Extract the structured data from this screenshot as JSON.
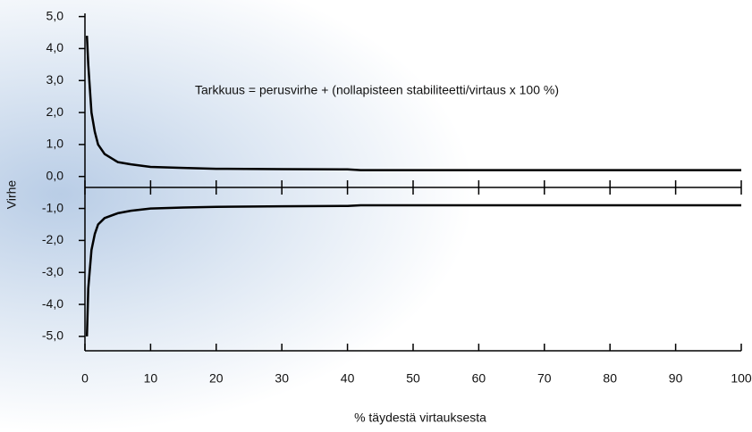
{
  "chart_data": {
    "type": "line",
    "annotation": "Tarkkuus = perusvirhe + (nollapisteen stabiliteetti/virtaus x 100 %)",
    "x_label": "% täydestä virtauksesta",
    "y_label": "Virhe",
    "x": [
      0.3,
      0.5,
      1,
      1.5,
      2,
      3,
      5,
      7,
      10,
      15,
      20,
      30,
      40,
      42,
      60,
      80,
      100
    ],
    "series": [
      {
        "color": "#000000",
        "values": [
          4.4,
          3.5,
          2.0,
          1.4,
          1.0,
          0.7,
          0.45,
          0.38,
          0.3,
          0.27,
          0.24,
          0.23,
          0.22,
          0.2,
          0.2,
          0.2,
          0.2
        ]
      },
      {
        "color": "#000000",
        "values": [
          -5.0,
          -3.5,
          -2.3,
          -1.8,
          -1.5,
          -1.3,
          -1.15,
          -1.07,
          -1.0,
          -0.97,
          -0.95,
          -0.93,
          -0.92,
          -0.9,
          -0.9,
          -0.9,
          -0.9
        ]
      }
    ],
    "xlim": [
      0,
      100
    ],
    "xticks": [
      0,
      10,
      20,
      30,
      40,
      50,
      60,
      70,
      80,
      90,
      100
    ],
    "ylim": [
      -5.45,
      5.1
    ],
    "yticks": [
      {
        "value": 5,
        "label": "5,0"
      },
      {
        "value": 4,
        "label": "4,0"
      },
      {
        "value": 3,
        "label": "3,0"
      },
      {
        "value": 2,
        "label": "2,0"
      },
      {
        "value": 1,
        "label": "1,0"
      },
      {
        "value": 0,
        "label": "0,0"
      },
      {
        "value": -1,
        "label": "-1,0"
      },
      {
        "value": -2,
        "label": "-2,0"
      },
      {
        "value": -3,
        "label": "-3,0"
      },
      {
        "value": -4,
        "label": "-4,0"
      },
      {
        "value": -5,
        "label": "-5,0"
      }
    ]
  }
}
